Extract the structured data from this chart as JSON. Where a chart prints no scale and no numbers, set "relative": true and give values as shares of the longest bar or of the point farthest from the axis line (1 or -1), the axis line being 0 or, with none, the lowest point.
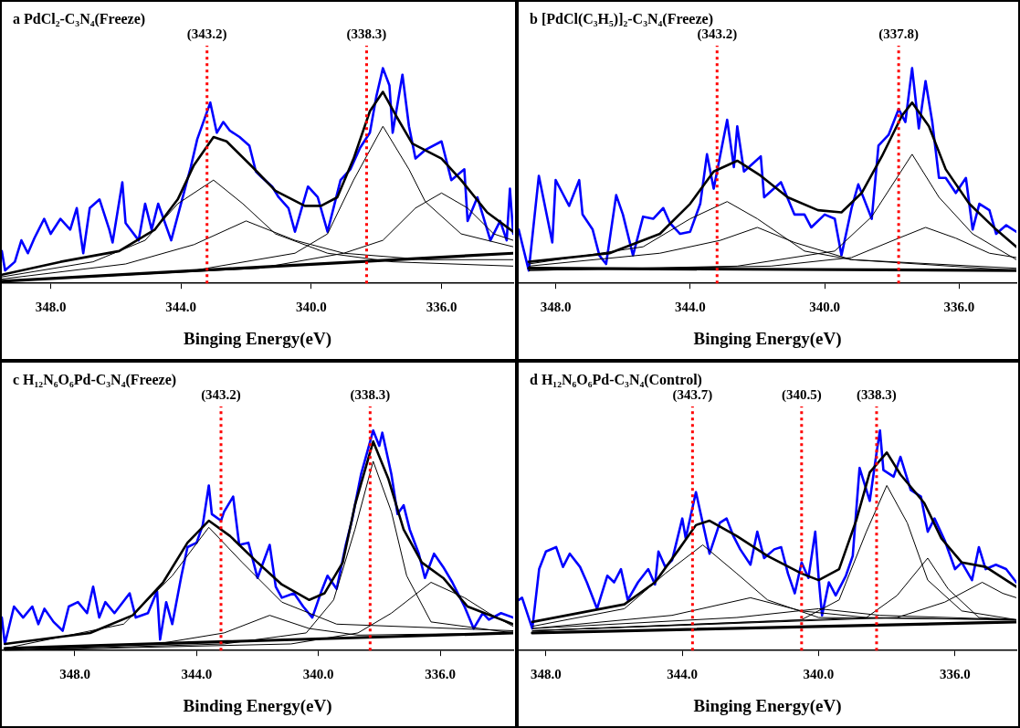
{
  "chart_data": [
    {
      "type": "line",
      "title": "a PdCl₂-C₃N₄(Freeze)",
      "xlabel": "Binging Energy(eV)",
      "relative": true,
      "xlim": [
        349.5,
        333.8
      ],
      "xticks": [
        {
          "value": 348,
          "label": "348.0"
        },
        {
          "value": 344,
          "label": "344.0"
        },
        {
          "value": 340,
          "label": "340.0"
        },
        {
          "value": 336,
          "label": "336.0"
        }
      ],
      "series": [
        {
          "color": "#0000ff",
          "x": [
            349.5,
            349.4,
            349.1,
            348.9,
            348.7,
            348.5,
            348.2,
            348.0,
            347.7,
            347.4,
            347.2,
            347.0,
            346.8,
            346.5,
            346.2,
            346.1,
            345.8,
            345.7,
            345.3,
            345.1,
            344.9,
            344.7,
            344.3,
            344.0,
            343.7,
            343.5,
            343.1,
            342.9,
            342.7,
            342.5,
            342.2,
            341.9,
            341.7,
            341.5,
            341.2,
            341.0,
            340.7,
            340.5,
            340.1,
            339.8,
            339.5,
            339.1,
            338.8,
            338.5,
            338.2,
            338.0,
            337.8,
            337.6,
            337.5,
            337.2,
            337.0,
            336.8,
            336.5,
            336.0,
            335.7,
            335.3,
            335.2,
            334.9,
            334.5,
            334.2,
            334.0,
            333.9,
            333.8
          ],
          "values": [
            0.15,
            0.06,
            0.1,
            0.2,
            0.14,
            0.21,
            0.3,
            0.23,
            0.3,
            0.25,
            0.35,
            0.14,
            0.35,
            0.39,
            0.25,
            0.19,
            0.47,
            0.28,
            0.2,
            0.37,
            0.25,
            0.37,
            0.2,
            0.37,
            0.54,
            0.67,
            0.84,
            0.7,
            0.75,
            0.71,
            0.68,
            0.64,
            0.52,
            0.49,
            0.45,
            0.4,
            0.35,
            0.24,
            0.45,
            0.4,
            0.24,
            0.48,
            0.53,
            0.63,
            0.7,
            0.87,
            1.0,
            0.92,
            0.7,
            0.97,
            0.73,
            0.58,
            0.62,
            0.66,
            0.48,
            0.53,
            0.29,
            0.4,
            0.2,
            0.29,
            0.2,
            0.44,
            0.23
          ]
        },
        {
          "color": "#000000",
          "x": [
            349.5,
            347.7,
            345.9,
            344.8,
            344.1,
            343.6,
            343.0,
            342.6,
            341.8,
            341.1,
            340.2,
            339.7,
            339.2,
            338.7,
            338.2,
            337.8,
            337.4,
            336.9,
            336.0,
            335.4,
            334.6,
            333.8
          ],
          "values": [
            0.04,
            0.1,
            0.15,
            0.25,
            0.39,
            0.55,
            0.68,
            0.66,
            0.54,
            0.43,
            0.36,
            0.36,
            0.4,
            0.58,
            0.8,
            0.89,
            0.78,
            0.65,
            0.58,
            0.48,
            0.33,
            0.24
          ]
        },
        {
          "color": "#000000",
          "x": [
            349.5,
            346.7,
            345.1,
            344.1,
            343.0,
            342.1,
            341.1,
            339.5,
            337.5,
            333.8
          ],
          "values": [
            0.03,
            0.1,
            0.2,
            0.37,
            0.48,
            0.37,
            0.23,
            0.14,
            0.1,
            0.08
          ]
        },
        {
          "color": "#000000",
          "x": [
            349.5,
            345.7,
            343.6,
            342.0,
            340.5,
            339.0,
            336.5,
            333.8
          ],
          "values": [
            0.02,
            0.09,
            0.18,
            0.29,
            0.2,
            0.14,
            0.11,
            0.11
          ]
        },
        {
          "color": "#000000",
          "x": [
            349.5,
            343.6,
            340.5,
            339.5,
            338.7,
            337.8,
            337.0,
            336.5,
            335.4,
            333.8
          ],
          "values": [
            0.01,
            0.06,
            0.14,
            0.23,
            0.48,
            0.73,
            0.53,
            0.38,
            0.23,
            0.17
          ]
        },
        {
          "color": "#000000",
          "x": [
            349.5,
            341.6,
            339.0,
            337.8,
            336.8,
            336.0,
            335.2,
            334.4,
            333.8
          ],
          "values": [
            0.01,
            0.07,
            0.14,
            0.2,
            0.35,
            0.42,
            0.35,
            0.23,
            0.2
          ]
        },
        {
          "color": "#000000",
          "x": [
            349.5,
            333.8
          ],
          "values": [
            0.01,
            0.14
          ]
        }
      ],
      "ref_lines": [
        {
          "axis": "x",
          "value": 343.2,
          "label": "(343.2)",
          "color": "#ff0000",
          "line_style": "dotted"
        },
        {
          "axis": "x",
          "value": 338.3,
          "label": "(338.3)",
          "color": "#ff0000",
          "line_style": "dotted"
        }
      ]
    },
    {
      "type": "line",
      "title": "b [PdCl(C₃H₅)]₂-C₃N₄(Freeze)",
      "xlabel": "Binging Energy(eV)",
      "relative": true,
      "xlim": [
        349.1,
        334.3
      ],
      "xticks": [
        {
          "value": 348,
          "label": "348.0"
        },
        {
          "value": 344,
          "label": "344.0"
        },
        {
          "value": 340,
          "label": "340.0"
        },
        {
          "value": 336,
          "label": "336.0"
        }
      ],
      "series": [
        {
          "color": "#0000ff",
          "x": [
            349.1,
            348.8,
            348.5,
            348.1,
            348.0,
            347.8,
            347.6,
            347.3,
            347.2,
            346.9,
            346.7,
            346.5,
            346.2,
            346.0,
            345.7,
            345.4,
            345.1,
            344.8,
            344.6,
            344.3,
            344.0,
            343.7,
            343.5,
            343.3,
            342.9,
            342.7,
            342.6,
            342.4,
            341.9,
            341.8,
            341.3,
            340.9,
            340.6,
            340.4,
            340.0,
            339.7,
            339.5,
            339.2,
            339.0,
            338.6,
            338.4,
            338.1,
            337.8,
            337.6,
            337.4,
            337.2,
            337.0,
            336.8,
            336.6,
            336.4,
            336.1,
            335.8,
            335.6,
            335.4,
            335.1,
            334.9,
            334.6,
            334.3
          ],
          "values": [
            0.25,
            0.06,
            0.5,
            0.19,
            0.48,
            0.42,
            0.36,
            0.48,
            0.32,
            0.25,
            0.13,
            0.09,
            0.41,
            0.32,
            0.13,
            0.31,
            0.3,
            0.35,
            0.28,
            0.23,
            0.24,
            0.37,
            0.6,
            0.44,
            0.76,
            0.54,
            0.73,
            0.52,
            0.59,
            0.4,
            0.47,
            0.32,
            0.32,
            0.26,
            0.32,
            0.3,
            0.13,
            0.35,
            0.46,
            0.3,
            0.64,
            0.69,
            0.81,
            0.75,
            1.0,
            0.72,
            0.94,
            0.75,
            0.49,
            0.49,
            0.42,
            0.49,
            0.25,
            0.37,
            0.34,
            0.23,
            0.27,
            0.24
          ]
        },
        {
          "color": "#000000",
          "x": [
            348.8,
            346.4,
            344.9,
            344.0,
            343.3,
            342.6,
            341.9,
            341.1,
            340.2,
            339.5,
            338.9,
            338.3,
            337.7,
            337.4,
            336.9,
            336.4,
            335.7,
            334.9,
            334.3
          ],
          "values": [
            0.1,
            0.14,
            0.23,
            0.37,
            0.52,
            0.57,
            0.5,
            0.4,
            0.34,
            0.33,
            0.42,
            0.59,
            0.78,
            0.84,
            0.73,
            0.53,
            0.37,
            0.25,
            0.17
          ]
        },
        {
          "color": "#000000",
          "x": [
            348.8,
            345.4,
            344.0,
            342.9,
            342.0,
            340.6,
            339.2,
            334.3
          ],
          "values": [
            0.09,
            0.17,
            0.3,
            0.38,
            0.3,
            0.15,
            0.11,
            0.06
          ]
        },
        {
          "color": "#000000",
          "x": [
            348.8,
            344.9,
            343.1,
            342.0,
            340.9,
            339.2,
            334.3
          ],
          "values": [
            0.08,
            0.14,
            0.2,
            0.26,
            0.19,
            0.11,
            0.07
          ]
        },
        {
          "color": "#000000",
          "x": [
            348.8,
            342.6,
            339.7,
            338.6,
            337.4,
            336.6,
            335.6,
            334.3
          ],
          "values": [
            0.06,
            0.08,
            0.15,
            0.31,
            0.6,
            0.4,
            0.23,
            0.11
          ]
        },
        {
          "color": "#000000",
          "x": [
            348.8,
            341.6,
            339.2,
            337.8,
            337.0,
            336.1,
            335.1,
            334.3
          ],
          "values": [
            0.06,
            0.08,
            0.12,
            0.21,
            0.26,
            0.21,
            0.14,
            0.12
          ]
        },
        {
          "color": "#000000",
          "x": [
            348.8,
            334.3
          ],
          "values": [
            0.07,
            0.06
          ]
        }
      ],
      "ref_lines": [
        {
          "axis": "x",
          "value": 343.2,
          "label": "(343.2)",
          "color": "#ff0000",
          "line_style": "dotted"
        },
        {
          "axis": "x",
          "value": 337.8,
          "label": "(337.8)",
          "color": "#ff0000",
          "line_style": "dotted"
        }
      ]
    },
    {
      "type": "line",
      "title": "c H₁₂N₆O₆Pd-C₃N₄(Freeze)",
      "xlabel": "Binding Energy(eV)",
      "relative": true,
      "xlim": [
        350.4,
        333.6
      ],
      "xticks": [
        {
          "value": 348,
          "label": "348.0"
        },
        {
          "value": 344,
          "label": "344.0"
        },
        {
          "value": 340,
          "label": "340.0"
        },
        {
          "value": 336,
          "label": "336.0"
        }
      ],
      "series": [
        {
          "color": "#0000ff",
          "x": [
            350.4,
            350.3,
            350.0,
            349.7,
            349.4,
            349.2,
            349.0,
            348.7,
            348.4,
            348.2,
            347.9,
            347.6,
            347.4,
            347.2,
            347.0,
            346.7,
            346.2,
            346.0,
            345.6,
            345.3,
            345.2,
            345.0,
            344.8,
            344.5,
            344.3,
            344.0,
            343.8,
            343.6,
            343.5,
            343.2,
            343.1,
            342.8,
            342.6,
            342.3,
            342.0,
            341.6,
            341.4,
            341.2,
            340.8,
            340.5,
            340.2,
            339.9,
            339.7,
            339.4,
            339.1,
            338.9,
            338.6,
            338.4,
            338.2,
            338.0,
            337.9,
            337.6,
            337.4,
            337.2,
            337.0,
            336.7,
            336.5,
            336.2,
            335.9,
            335.6,
            335.2,
            334.9,
            334.6,
            334.4,
            334.0,
            333.6
          ],
          "values": [
            0.15,
            0.03,
            0.2,
            0.15,
            0.2,
            0.12,
            0.19,
            0.13,
            0.09,
            0.2,
            0.22,
            0.17,
            0.29,
            0.15,
            0.22,
            0.17,
            0.26,
            0.15,
            0.17,
            0.27,
            0.05,
            0.22,
            0.12,
            0.34,
            0.47,
            0.49,
            0.57,
            0.75,
            0.62,
            0.59,
            0.63,
            0.7,
            0.48,
            0.49,
            0.33,
            0.48,
            0.29,
            0.24,
            0.26,
            0.2,
            0.15,
            0.27,
            0.34,
            0.28,
            0.48,
            0.59,
            0.8,
            0.9,
            1.0,
            0.93,
            0.99,
            0.8,
            0.62,
            0.66,
            0.55,
            0.44,
            0.33,
            0.44,
            0.38,
            0.31,
            0.2,
            0.1,
            0.17,
            0.14,
            0.17,
            0.15
          ]
        },
        {
          "color": "#000000",
          "x": [
            350.3,
            347.5,
            346.1,
            345.1,
            344.3,
            343.6,
            342.9,
            342.0,
            341.2,
            340.3,
            339.8,
            339.2,
            338.8,
            338.2,
            337.7,
            337.2,
            336.6,
            335.9,
            335.1,
            333.6
          ],
          "values": [
            0.03,
            0.08,
            0.16,
            0.31,
            0.49,
            0.59,
            0.52,
            0.4,
            0.3,
            0.23,
            0.26,
            0.4,
            0.66,
            0.95,
            0.78,
            0.55,
            0.4,
            0.33,
            0.2,
            0.12
          ]
        },
        {
          "color": "#000000",
          "x": [
            350.3,
            346.4,
            344.8,
            343.6,
            342.5,
            341.2,
            339.4,
            333.6
          ],
          "values": [
            0.01,
            0.12,
            0.34,
            0.56,
            0.4,
            0.22,
            0.12,
            0.09
          ]
        },
        {
          "color": "#000000",
          "x": [
            350.3,
            345.3,
            343.1,
            341.6,
            340.3,
            338.7,
            333.6
          ],
          "values": [
            0.0,
            0.03,
            0.08,
            0.16,
            0.1,
            0.07,
            0.08
          ]
        },
        {
          "color": "#000000",
          "x": [
            350.3,
            343.1,
            340.4,
            339.5,
            338.8,
            338.2,
            337.6,
            337.1,
            336.3,
            333.6
          ],
          "values": [
            0.0,
            0.03,
            0.08,
            0.23,
            0.55,
            0.86,
            0.63,
            0.34,
            0.13,
            0.08
          ]
        },
        {
          "color": "#000000",
          "x": [
            350.3,
            340.9,
            338.7,
            337.6,
            336.3,
            335.2,
            334.4,
            333.6
          ],
          "values": [
            0.0,
            0.03,
            0.08,
            0.17,
            0.31,
            0.24,
            0.17,
            0.11
          ]
        },
        {
          "color": "#000000",
          "x": [
            350.3,
            333.6
          ],
          "values": [
            0.01,
            0.08
          ]
        }
      ],
      "ref_lines": [
        {
          "axis": "x",
          "value": 343.2,
          "label": "(343.2)",
          "color": "#ff0000",
          "line_style": "dotted"
        },
        {
          "axis": "x",
          "value": 338.3,
          "label": "(338.3)",
          "color": "#ff0000",
          "line_style": "dotted"
        }
      ]
    },
    {
      "type": "line",
      "title": "d H₁₂N₆O₆Pd-C₃N₄(Control)",
      "xlabel": "Binging Energy(eV)",
      "relative": true,
      "xlim": [
        348.8,
        334.2
      ],
      "xticks": [
        {
          "value": 348,
          "label": "348.0"
        },
        {
          "value": 344,
          "label": "344.0"
        },
        {
          "value": 340,
          "label": "340.0"
        },
        {
          "value": 336,
          "label": "336.0"
        }
      ],
      "series": [
        {
          "color": "#0000ff",
          "x": [
            348.8,
            348.7,
            348.4,
            348.2,
            348.0,
            347.7,
            347.5,
            347.3,
            347.0,
            346.8,
            346.5,
            346.2,
            346.0,
            345.8,
            345.6,
            345.3,
            345.0,
            344.8,
            344.7,
            344.5,
            344.3,
            344.0,
            343.9,
            343.6,
            343.4,
            343.2,
            342.9,
            342.7,
            342.5,
            342.3,
            342.0,
            341.8,
            341.6,
            341.3,
            341.1,
            340.9,
            340.7,
            340.5,
            340.3,
            340.1,
            340.0,
            339.9,
            339.7,
            339.5,
            339.2,
            339.0,
            338.8,
            338.5,
            338.3,
            338.2,
            338.1,
            337.8,
            337.6,
            337.3,
            337.0,
            336.8,
            336.6,
            336.3,
            336.0,
            335.8,
            335.5,
            335.3,
            335.1,
            334.8,
            334.5,
            334.2
          ],
          "values": [
            0.23,
            0.24,
            0.1,
            0.37,
            0.45,
            0.47,
            0.38,
            0.44,
            0.38,
            0.31,
            0.19,
            0.34,
            0.31,
            0.37,
            0.23,
            0.31,
            0.37,
            0.3,
            0.45,
            0.38,
            0.41,
            0.6,
            0.51,
            0.72,
            0.58,
            0.44,
            0.58,
            0.6,
            0.52,
            0.46,
            0.39,
            0.54,
            0.42,
            0.46,
            0.47,
            0.35,
            0.26,
            0.4,
            0.33,
            0.54,
            0.33,
            0.16,
            0.31,
            0.25,
            0.34,
            0.43,
            0.83,
            0.68,
            0.9,
            1.0,
            0.82,
            0.79,
            0.88,
            0.73,
            0.7,
            0.54,
            0.6,
            0.5,
            0.37,
            0.4,
            0.32,
            0.47,
            0.37,
            0.39,
            0.37,
            0.31
          ]
        },
        {
          "color": "#000000",
          "x": [
            348.4,
            345.7,
            344.8,
            344.1,
            343.6,
            343.2,
            342.4,
            341.5,
            340.5,
            340.0,
            339.4,
            338.9,
            338.5,
            338.0,
            337.6,
            336.9,
            336.4,
            335.8,
            335.1,
            334.2
          ],
          "values": [
            0.13,
            0.21,
            0.31,
            0.46,
            0.57,
            0.59,
            0.52,
            0.43,
            0.35,
            0.32,
            0.37,
            0.59,
            0.81,
            0.9,
            0.8,
            0.67,
            0.51,
            0.4,
            0.38,
            0.29
          ]
        },
        {
          "color": "#000000",
          "x": [
            348.4,
            345.7,
            344.5,
            343.4,
            342.4,
            341.5,
            340.0,
            334.2
          ],
          "values": [
            0.11,
            0.19,
            0.35,
            0.48,
            0.35,
            0.23,
            0.15,
            0.14
          ]
        },
        {
          "color": "#000000",
          "x": [
            348.4,
            344.3,
            342.0,
            340.5,
            338.6,
            334.2
          ],
          "values": [
            0.1,
            0.16,
            0.24,
            0.18,
            0.15,
            0.14
          ]
        },
        {
          "color": "#000000",
          "x": [
            348.4,
            342.4,
            340.0,
            338.2,
            334.2
          ],
          "values": [
            0.1,
            0.15,
            0.19,
            0.16,
            0.14
          ]
        },
        {
          "color": "#000000",
          "x": [
            348.4,
            340.5,
            339.4,
            338.6,
            338.0,
            337.4,
            336.8,
            335.8,
            334.2
          ],
          "values": [
            0.09,
            0.14,
            0.23,
            0.54,
            0.75,
            0.58,
            0.32,
            0.18,
            0.14
          ]
        },
        {
          "color": "#000000",
          "x": [
            348.4,
            338.6,
            337.7,
            336.8,
            336.2,
            335.3,
            334.2
          ],
          "values": [
            0.09,
            0.15,
            0.25,
            0.42,
            0.28,
            0.15,
            0.14
          ]
        },
        {
          "color": "#000000",
          "x": [
            348.4,
            337.7,
            336.3,
            335.2,
            334.6,
            334.2
          ],
          "values": [
            0.09,
            0.15,
            0.22,
            0.31,
            0.26,
            0.24
          ]
        },
        {
          "color": "#000000",
          "x": [
            348.4,
            334.2
          ],
          "values": [
            0.08,
            0.13
          ]
        }
      ],
      "ref_lines": [
        {
          "axis": "x",
          "value": 343.7,
          "label": "(343.7)",
          "color": "#ff0000",
          "line_style": "dotted"
        },
        {
          "axis": "x",
          "value": 340.5,
          "label": "(340.5)",
          "color": "#ff0000",
          "line_style": "dotted"
        },
        {
          "axis": "x",
          "value": 338.3,
          "label": "(338.3)",
          "color": "#ff0000",
          "line_style": "dotted"
        }
      ]
    }
  ]
}
